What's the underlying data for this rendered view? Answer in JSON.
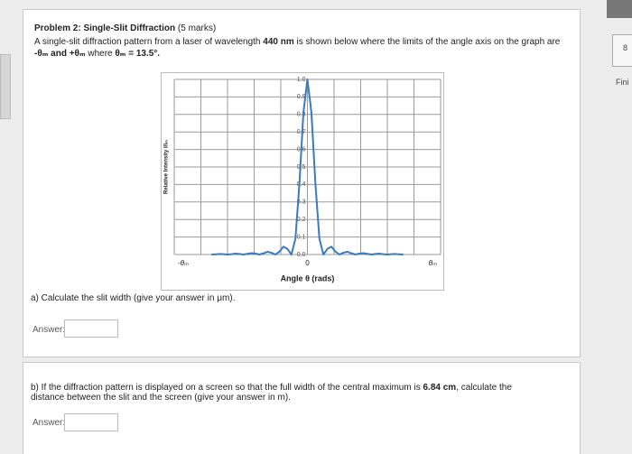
{
  "problem": {
    "title": "Problem 2: Single-Slit Diffraction",
    "marks": "(5 marks)",
    "intro": [
      "A single-slit diffraction pattern from a laser of wavelength",
      "440 nm",
      "is shown below where the limits of the angle axis on the graph are",
      "-θₘ and +θₘ",
      "where",
      "θₘ = 13.5°."
    ]
  },
  "chart_data": {
    "type": "line",
    "xlabel": "Angle θ (rads)",
    "ylabel": "Relative Intensity I/Iₘ",
    "color": "#3b7bbd",
    "grid": true,
    "xlim": [
      -1,
      1
    ],
    "xticks": [
      {
        "value": -1,
        "label": "-θₘ"
      },
      0,
      {
        "value": 1,
        "label": "θₘ"
      }
    ],
    "ylim": [
      0,
      1
    ],
    "yticks": [
      {
        "value": 0,
        "label": "0.0"
      },
      0.1,
      0.2,
      0.3,
      0.4,
      0.5,
      0.6,
      0.7,
      0.8,
      0.9,
      {
        "value": 1,
        "label": "1.0"
      }
    ],
    "x": [
      -0.72,
      -0.69,
      -0.66,
      -0.63,
      -0.6,
      -0.57,
      -0.54,
      -0.51,
      -0.48,
      -0.45,
      -0.42,
      -0.39,
      -0.36,
      -0.33,
      -0.3,
      -0.27,
      -0.24,
      -0.21,
      -0.18,
      -0.15,
      -0.12,
      -0.09,
      -0.06,
      -0.03,
      0,
      0.03,
      0.06,
      0.09,
      0.12,
      0.15,
      0.18,
      0.21,
      0.24,
      0.27,
      0.3,
      0.33,
      0.36,
      0.39,
      0.42,
      0.45,
      0.48,
      0.51,
      0.54,
      0.57,
      0.6,
      0.63,
      0.66,
      0.69,
      0.72
    ],
    "values": [
      0,
      0.001,
      0.003,
      0.002,
      0,
      0.002,
      0.005,
      0.003,
      0,
      0.004,
      0.008,
      0.005,
      0,
      0.007,
      0.016,
      0.01,
      0,
      0.017,
      0.045,
      0.032,
      0,
      0.09,
      0.405,
      0.811,
      1,
      0.811,
      0.405,
      0.09,
      0,
      0.032,
      0.045,
      0.017,
      0,
      0.01,
      0.016,
      0.007,
      0,
      0.005,
      0.008,
      0.004,
      0,
      0.003,
      0.005,
      0.002,
      0,
      0.002,
      0.003,
      0.001,
      0
    ]
  },
  "part_a": {
    "question": "a) Calculate the slit width (give your answer in μm).",
    "answer_label": "Answer:"
  },
  "part_b": {
    "question_start": "b) If the diffraction pattern is displayed on a screen so that the full width of the central maximum is",
    "value": "6.84 cm",
    "question_mid": ", calculate the",
    "question_end": "distance between the slit and the screen (give your answer in m).",
    "answer_label": "Answer:"
  },
  "sidebar": {
    "question_number": "8",
    "finish": "Fini"
  }
}
